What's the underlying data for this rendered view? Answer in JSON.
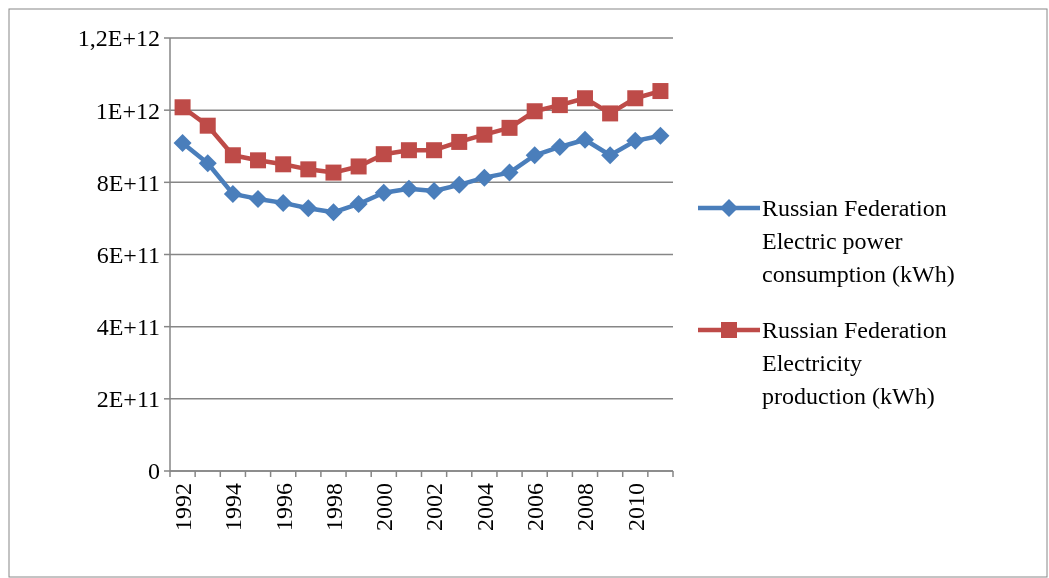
{
  "chart_data": {
    "type": "line",
    "categories": [
      "1992",
      null,
      "1994",
      null,
      "1996",
      null,
      "1998",
      null,
      "2000",
      null,
      "2002",
      null,
      "2004",
      null,
      "2006",
      null,
      "2008",
      null,
      "2010",
      null
    ],
    "series": [
      {
        "name": "Russian Federation Electric power consumption (kWh)",
        "color": "#4a7ebb",
        "marker": "diamond",
        "values": [
          909000000000.0,
          853000000000.0,
          768000000000.0,
          754000000000.0,
          743000000000.0,
          728000000000.0,
          717000000000.0,
          740000000000.0,
          771000000000.0,
          782000000000.0,
          776000000000.0,
          793000000000.0,
          813000000000.0,
          827000000000.0,
          875000000000.0,
          898000000000.0,
          918000000000.0,
          875000000000.0,
          915000000000.0,
          929000000000.0
        ]
      },
      {
        "name": "Russian Federation Electricity production (kWh)",
        "color": "#be4b48",
        "marker": "square",
        "values": [
          1008000000000.0,
          957000000000.0,
          875000000000.0,
          861000000000.0,
          850000000000.0,
          836000000000.0,
          827000000000.0,
          844000000000.0,
          878000000000.0,
          889000000000.0,
          889000000000.0,
          912000000000.0,
          932000000000.0,
          951000000000.0,
          997000000000.0,
          1014000000000.0,
          1033000000000.0,
          991000000000.0,
          1033000000000.0,
          1053000000000.0
        ]
      }
    ],
    "ylim": [
      0,
      1200000000000.0
    ],
    "yticks": [
      {
        "value": 0,
        "label": "0"
      },
      {
        "value": 200000000000.0,
        "label": "2E+11"
      },
      {
        "value": 400000000000.0,
        "label": "4E+11"
      },
      {
        "value": 600000000000.0,
        "label": "6E+11"
      },
      {
        "value": 800000000000.0,
        "label": "8E+11"
      },
      {
        "value": 1000000000000.0,
        "label": "1E+12"
      },
      {
        "value": 1200000000000.0,
        "label": "1,2E+12"
      }
    ],
    "grid": "y",
    "legend": "right"
  }
}
